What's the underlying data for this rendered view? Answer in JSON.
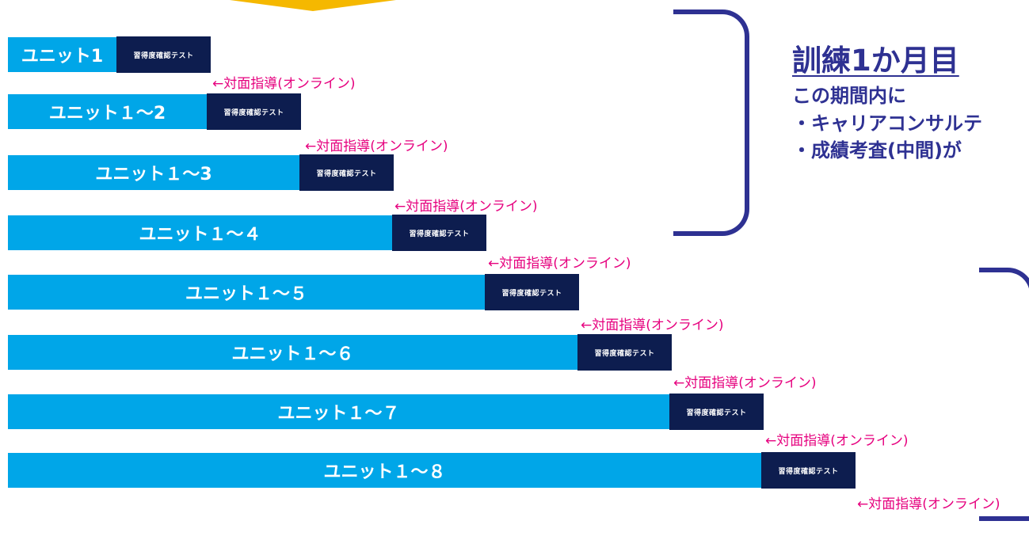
{
  "rows": [
    {
      "unit": "ユニット1"
    },
    {
      "unit": "ユニット１～2"
    },
    {
      "unit": "ユニット１～3"
    },
    {
      "unit": "ユニット１～４"
    },
    {
      "unit": "ユニット１～５"
    },
    {
      "unit": "ユニット１～６"
    },
    {
      "unit": "ユニット１～７"
    },
    {
      "unit": "ユニット１～８"
    }
  ],
  "test_label": "習得度確認テスト",
  "note_label": "←対面指導(オンライン)",
  "panel": {
    "title": "訓練1か月目",
    "line1": "この期間内に",
    "line2": "・キャリアコンサルテ",
    "line3": "・成績考査(中間)が"
  },
  "colors": {
    "bar": "#00a6e8",
    "test": "#0d1d4f",
    "note": "#e6007e",
    "bracket": "#2e3192",
    "arrow": "#f5b800"
  }
}
